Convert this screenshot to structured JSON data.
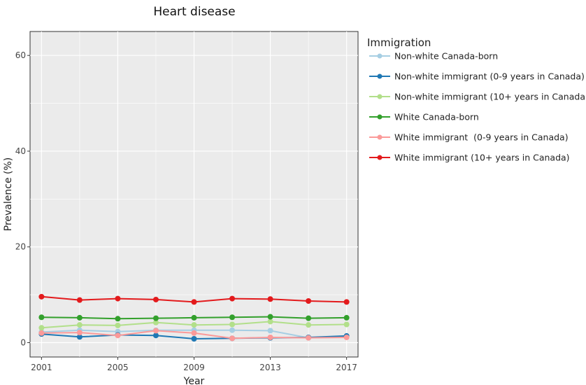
{
  "chart_data": {
    "type": "line",
    "title": "Heart disease",
    "xlabel": "Year",
    "ylabel": "Prevalence (%)",
    "xlim": [
      2000.4,
      2017.6
    ],
    "ylim": [
      -3,
      65
    ],
    "xticks": [
      2001,
      2005,
      2009,
      2013,
      2017
    ],
    "yticks": [
      0,
      20,
      40,
      60
    ],
    "grid": true,
    "legend": {
      "title": "Immigration",
      "position": "right"
    },
    "x": [
      2001,
      2003,
      2005,
      2007,
      2009,
      2011,
      2013,
      2015,
      2017
    ],
    "series": [
      {
        "name": "Non-white Canada-born",
        "color": "#a6cee3",
        "values": [
          2.2,
          2.6,
          2.3,
          2.6,
          2.6,
          2.6,
          2.5,
          1.0,
          1.3
        ]
      },
      {
        "name": "Non-white immigrant (0-9 years in Canada)",
        "color": "#1f78b4",
        "values": [
          1.8,
          1.2,
          1.6,
          1.5,
          0.8,
          0.9,
          1.0,
          1.1,
          1.4
        ]
      },
      {
        "name": "Non-white immigrant (10+ years in Canada)",
        "color": "#b2df8a",
        "values": [
          3.1,
          3.7,
          3.6,
          4.2,
          3.7,
          3.8,
          4.4,
          3.7,
          3.8
        ]
      },
      {
        "name": "White Canada-born",
        "color": "#33a02c",
        "values": [
          5.3,
          5.2,
          5.0,
          5.1,
          5.2,
          5.3,
          5.4,
          5.1,
          5.2
        ]
      },
      {
        "name": "White immigrant  (0-9 years in Canada)",
        "color": "#fb9a99",
        "values": [
          2.0,
          2.1,
          1.5,
          2.5,
          2.0,
          0.9,
          1.1,
          1.0,
          1.1
        ]
      },
      {
        "name": "White immigrant (10+ years in Canada)",
        "color": "#e31a1c",
        "values": [
          9.6,
          8.9,
          9.2,
          9.0,
          8.5,
          9.2,
          9.1,
          8.7,
          8.5
        ]
      }
    ]
  }
}
